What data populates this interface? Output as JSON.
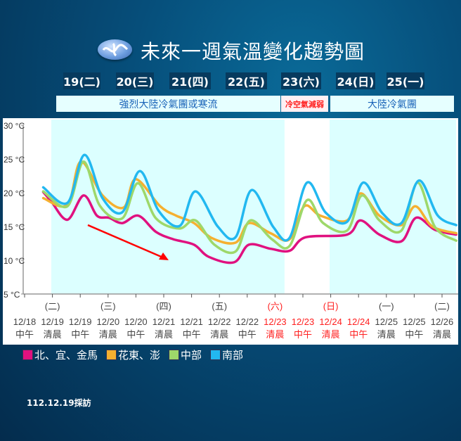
{
  "title": "未來一週氣溫變化趨勢圖",
  "days": [
    "19(二)",
    "20(三)",
    "21(四)",
    "22(五)",
    "23(六)",
    "24(日)",
    "25(一)"
  ],
  "bands": [
    {
      "label": "強烈大陸冷氣團或寒流",
      "color": "#1a63b8"
    },
    {
      "label": "冷空氣減弱",
      "color": "#ff2020"
    },
    {
      "label": "大陸冷氣團",
      "color": "#1a63b8"
    }
  ],
  "note": "112.12.19採訪",
  "chart_data": {
    "type": "line",
    "ylim": [
      5,
      30
    ],
    "y_ticks": [
      "30 °C",
      "25 °C",
      "20 °C",
      "15 °C",
      "10 °C",
      "5 °C"
    ],
    "y_tick_values": [
      30,
      25,
      20,
      15,
      10,
      5
    ],
    "x_ticks": [
      {
        "weekday": "",
        "date": "12/18",
        "time": "中午",
        "holiday": false
      },
      {
        "weekday": "(二)",
        "date": "12/19",
        "time": "清晨",
        "holiday": false
      },
      {
        "weekday": "",
        "date": "12/19",
        "time": "中午",
        "holiday": false
      },
      {
        "weekday": "(三)",
        "date": "12/20",
        "time": "清晨",
        "holiday": false
      },
      {
        "weekday": "",
        "date": "12/20",
        "time": "中午",
        "holiday": false
      },
      {
        "weekday": "(四)",
        "date": "12/21",
        "time": "清晨",
        "holiday": false
      },
      {
        "weekday": "",
        "date": "12/21",
        "time": "中午",
        "holiday": false
      },
      {
        "weekday": "(五)",
        "date": "12/22",
        "time": "清晨",
        "holiday": false
      },
      {
        "weekday": "",
        "date": "12/22",
        "time": "中午",
        "holiday": false
      },
      {
        "weekday": "(六)",
        "date": "12/23",
        "time": "清晨",
        "holiday": true
      },
      {
        "weekday": "",
        "date": "12/23",
        "time": "中午",
        "holiday": true
      },
      {
        "weekday": "(日)",
        "date": "12/24",
        "time": "清晨",
        "holiday": true
      },
      {
        "weekday": "",
        "date": "12/24",
        "time": "中午",
        "holiday": true
      },
      {
        "weekday": "(一)",
        "date": "12/25",
        "time": "清晨",
        "holiday": false
      },
      {
        "weekday": "",
        "date": "12/25",
        "time": "中午",
        "holiday": false
      },
      {
        "weekday": "(二)",
        "date": "12/26",
        "time": "清晨",
        "holiday": false
      }
    ],
    "holiday_color": "#ff2020",
    "shaded_periods_color": "#dcffff",
    "trend_arrow_color": "#ff0000",
    "series": [
      {
        "name": "北、宜、金馬",
        "color": "#e0117f",
        "points": [
          [
            0.67,
            20.1
          ],
          [
            0.96,
            18.7
          ],
          [
            1.54,
            16.0
          ],
          [
            2.12,
            19.6
          ],
          [
            2.6,
            16.6
          ],
          [
            3.03,
            16.3
          ],
          [
            3.51,
            15.5
          ],
          [
            4.09,
            16.6
          ],
          [
            4.72,
            14.2
          ],
          [
            5.35,
            13.1
          ],
          [
            6.09,
            12.3
          ],
          [
            6.62,
            10.5
          ],
          [
            7.53,
            9.7
          ],
          [
            8.06,
            12.3
          ],
          [
            8.84,
            11.7
          ],
          [
            9.52,
            11.4
          ],
          [
            10.1,
            13.4
          ],
          [
            11.59,
            13.8
          ],
          [
            12.07,
            15.9
          ],
          [
            12.75,
            13.8
          ],
          [
            13.54,
            12.8
          ],
          [
            14.07,
            16.3
          ],
          [
            14.75,
            14.5
          ],
          [
            15.51,
            13.8
          ]
        ]
      },
      {
        "name": "花東、澎",
        "color": "#f5b030",
        "points": [
          [
            0.67,
            19.2
          ],
          [
            1.54,
            18.2
          ],
          [
            2.02,
            24.6
          ],
          [
            2.8,
            19.6
          ],
          [
            3.56,
            17.8
          ],
          [
            3.99,
            22.0
          ],
          [
            4.87,
            18.0
          ],
          [
            5.45,
            16.6
          ],
          [
            6.09,
            15.5
          ],
          [
            6.72,
            13.3
          ],
          [
            7.58,
            12.6
          ],
          [
            8.06,
            15.5
          ],
          [
            8.84,
            14.0
          ],
          [
            9.52,
            13.1
          ],
          [
            10.05,
            18.0
          ],
          [
            10.63,
            16.6
          ],
          [
            11.59,
            15.9
          ],
          [
            12.07,
            19.9
          ],
          [
            12.75,
            16.6
          ],
          [
            13.54,
            15.2
          ],
          [
            14.04,
            18.0
          ],
          [
            14.65,
            15.0
          ],
          [
            15.51,
            14.0
          ]
        ]
      },
      {
        "name": "中部",
        "color": "#9ed86a",
        "points": [
          [
            0.67,
            20.2
          ],
          [
            1.54,
            18.0
          ],
          [
            2.12,
            24.6
          ],
          [
            2.7,
            18.1
          ],
          [
            3.51,
            16.2
          ],
          [
            4.07,
            21.4
          ],
          [
            4.72,
            16.2
          ],
          [
            5.56,
            14.7
          ],
          [
            6.14,
            15.9
          ],
          [
            6.82,
            12.3
          ],
          [
            7.58,
            11.3
          ],
          [
            8.11,
            15.9
          ],
          [
            8.89,
            13.1
          ],
          [
            9.52,
            12.1
          ],
          [
            10.15,
            18.9
          ],
          [
            10.73,
            15.5
          ],
          [
            11.59,
            14.4
          ],
          [
            12.12,
            19.6
          ],
          [
            12.75,
            15.9
          ],
          [
            13.54,
            14.4
          ],
          [
            14.12,
            21.5
          ],
          [
            14.75,
            14.9
          ],
          [
            15.51,
            12.9
          ]
        ]
      },
      {
        "name": "南部",
        "color": "#22b8f0",
        "points": [
          [
            0.67,
            20.8
          ],
          [
            1.54,
            18.5
          ],
          [
            2.15,
            25.6
          ],
          [
            2.8,
            19.2
          ],
          [
            3.51,
            17.1
          ],
          [
            4.14,
            23.2
          ],
          [
            4.82,
            17.3
          ],
          [
            5.58,
            15.1
          ],
          [
            6.14,
            20.2
          ],
          [
            6.94,
            15.0
          ],
          [
            7.58,
            13.4
          ],
          [
            8.16,
            20.4
          ],
          [
            8.94,
            14.9
          ],
          [
            9.52,
            13.3
          ],
          [
            10.15,
            21.5
          ],
          [
            10.83,
            17.0
          ],
          [
            11.59,
            15.7
          ],
          [
            12.17,
            21.5
          ],
          [
            12.85,
            17.0
          ],
          [
            13.54,
            15.5
          ],
          [
            14.17,
            21.8
          ],
          [
            14.85,
            16.6
          ],
          [
            15.51,
            15.2
          ]
        ]
      }
    ]
  }
}
